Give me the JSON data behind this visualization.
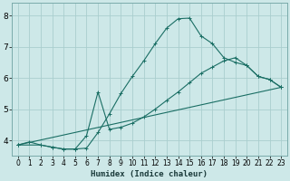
{
  "xlabel": "Humidex (Indice chaleur)",
  "bg_color": "#cde8e8",
  "grid_color": "#aacece",
  "line_color": "#1a6e64",
  "xlim": [
    -0.5,
    23.5
  ],
  "ylim": [
    3.5,
    8.4
  ],
  "xticks": [
    0,
    1,
    2,
    3,
    4,
    5,
    6,
    7,
    8,
    9,
    10,
    11,
    12,
    13,
    14,
    15,
    16,
    17,
    18,
    19,
    20,
    21,
    22,
    23
  ],
  "yticks": [
    4,
    5,
    6,
    7,
    8
  ],
  "line1_x": [
    0,
    1,
    2,
    3,
    4,
    5,
    6,
    7,
    8,
    9,
    10,
    11,
    12,
    13,
    14,
    15,
    16,
    17,
    18,
    19,
    20,
    21,
    22,
    23
  ],
  "line1_y": [
    3.85,
    3.95,
    3.85,
    3.78,
    3.72,
    3.72,
    3.75,
    4.25,
    4.85,
    5.5,
    6.05,
    6.55,
    7.1,
    7.6,
    7.9,
    7.92,
    7.35,
    7.1,
    6.65,
    6.5,
    6.4,
    6.05,
    5.95,
    5.7
  ],
  "line2_x": [
    0,
    2,
    3,
    4,
    5,
    6,
    7,
    8,
    9,
    10,
    11,
    12,
    13,
    14,
    15,
    16,
    17,
    18,
    19,
    20,
    21,
    22,
    23
  ],
  "line2_y": [
    3.85,
    3.85,
    3.78,
    3.72,
    3.72,
    4.15,
    5.55,
    4.35,
    4.42,
    4.55,
    4.75,
    5.0,
    5.28,
    5.55,
    5.85,
    6.15,
    6.35,
    6.55,
    6.65,
    6.4,
    6.05,
    5.95,
    5.7
  ],
  "line3_x": [
    0,
    23
  ],
  "line3_y": [
    3.85,
    5.7
  ],
  "marker": "+"
}
